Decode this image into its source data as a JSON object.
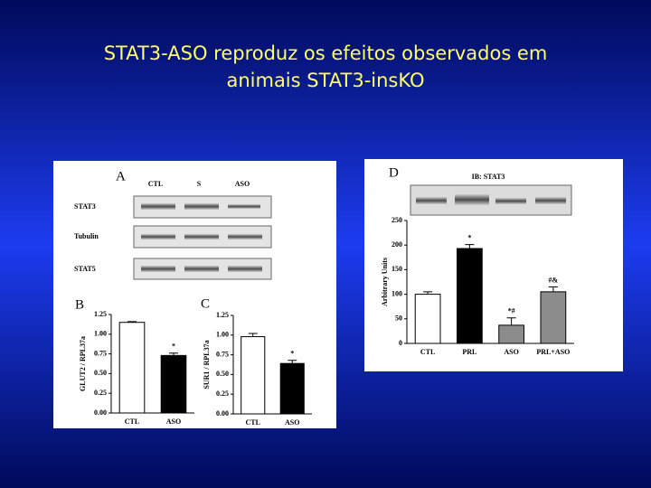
{
  "title": [
    "STAT3-ASO reproduz os efeitos observados em",
    "animais STAT3-insKO"
  ],
  "blot_a": {
    "panel": "A",
    "columns": [
      "CTL",
      "S",
      "ASO"
    ],
    "rows": [
      "STAT3",
      "Tubulin",
      "STAT5"
    ]
  },
  "blot_d": {
    "panel": "D",
    "caption": "IB: STAT3"
  },
  "chart_data": [
    {
      "type": "bar",
      "panel": "B",
      "y_label": "GLUT2 / RPL37a",
      "categories": [
        "CTL",
        "ASO"
      ],
      "values": [
        1.15,
        0.73
      ],
      "errors": [
        0.01,
        0.03
      ],
      "colors": [
        "#ffffff",
        "#000000"
      ],
      "annotations": [
        null,
        "*"
      ],
      "ylim": [
        0,
        1.25
      ],
      "yticks": [
        {
          "value": 0,
          "label": "0.00"
        },
        {
          "value": 0.25,
          "label": "0.25"
        },
        {
          "value": 0.5,
          "label": "0.50"
        },
        {
          "value": 0.75,
          "label": "0.75"
        },
        {
          "value": 1,
          "label": "1.00"
        },
        {
          "value": 1.25,
          "label": "1.25"
        }
      ]
    },
    {
      "type": "bar",
      "panel": "C",
      "y_label": "SUR1 / RPL37a",
      "categories": [
        "CTL",
        "ASO"
      ],
      "values": [
        0.98,
        0.64
      ],
      "errors": [
        0.04,
        0.04
      ],
      "colors": [
        "#ffffff",
        "#000000"
      ],
      "annotations": [
        null,
        "*"
      ],
      "ylim": [
        0,
        1.25
      ],
      "yticks": [
        {
          "value": 0,
          "label": "0.00"
        },
        {
          "value": 0.25,
          "label": "0.25"
        },
        {
          "value": 0.5,
          "label": "0.50"
        },
        {
          "value": 0.75,
          "label": "0.75"
        },
        {
          "value": 1,
          "label": "1.00"
        },
        {
          "value": 1.25,
          "label": "1.25"
        }
      ]
    },
    {
      "type": "bar",
      "y_label": "Arbitrary Units",
      "categories": [
        "CTL",
        "PRL",
        "ASO",
        "PRL+ASO"
      ],
      "values": [
        100,
        193,
        37,
        105
      ],
      "errors": [
        5,
        8,
        15,
        10
      ],
      "colors": [
        "#ffffff",
        "#000000",
        "#8c8c8c",
        "#8c8c8c"
      ],
      "annotations": [
        null,
        "*",
        "*#",
        "#&"
      ],
      "ylim": [
        0,
        250
      ],
      "yticks": [
        0,
        50,
        100,
        150,
        200,
        250
      ]
    }
  ]
}
